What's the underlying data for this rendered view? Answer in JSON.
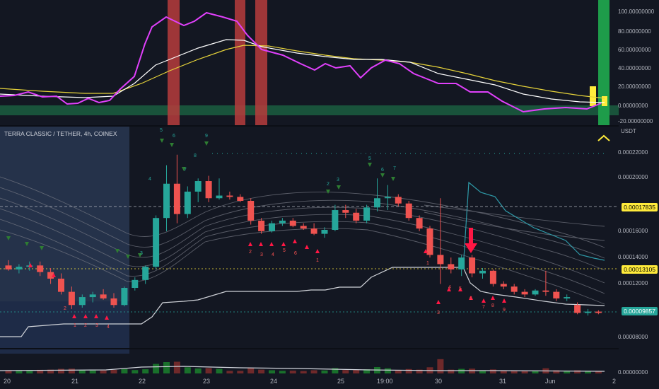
{
  "chart_title": "TERRA CLASSIC / TETHER, 4h, COINEX",
  "unit": "USDT",
  "oscillator_axis": [
    "100.00000000",
    "80.00000000",
    "60.00000000",
    "40.00000000",
    "20.00000000",
    "0.00000000",
    "-20.00000000"
  ],
  "price_axis": [
    "0.00022000",
    "0.00020000",
    "0.00016000",
    "0.00014000",
    "0.00012000",
    "0.00008000"
  ],
  "price_tags": [
    {
      "label": "0.00017835",
      "color": "#ffeb3b",
      "text_color": "#000000"
    },
    {
      "label": "0.00013105",
      "color": "#ffeb3b",
      "text_color": "#000000"
    },
    {
      "label": "0.00009857",
      "color": "#26a69a",
      "text_color": "#ffffff"
    }
  ],
  "volume_axis": "0.00000000",
  "time_axis": [
    "20",
    "21",
    "22",
    "23",
    "24",
    "25",
    "19:00",
    "30",
    "31",
    "Jun",
    "2"
  ],
  "colors": {
    "bull": "#26a69a",
    "bear": "#ef5350",
    "background": "#131722",
    "magenta": "#e040fb",
    "yellow_line": "#e6d33a"
  },
  "chart_data": {
    "type": "candlestick",
    "symbol": "TERRA CLASSIC / TETHER",
    "timeframe": "4h",
    "exchange": "COINEX",
    "candles": [
      {
        "o": 0.000134,
        "h": 0.000138,
        "l": 0.00013,
        "c": 0.000131
      },
      {
        "o": 0.000131,
        "h": 0.000135,
        "l": 0.000128,
        "c": 0.000133
      },
      {
        "o": 0.000133,
        "h": 0.000137,
        "l": 0.00013,
        "c": 0.000134
      },
      {
        "o": 0.000134,
        "h": 0.000137,
        "l": 0.000126,
        "c": 0.000129
      },
      {
        "o": 0.000129,
        "h": 0.000132,
        "l": 0.00012,
        "c": 0.000124
      },
      {
        "o": 0.000124,
        "h": 0.000128,
        "l": 0.000112,
        "c": 0.000114
      },
      {
        "o": 0.000114,
        "h": 0.000118,
        "l": 0.000101,
        "c": 0.000104
      },
      {
        "o": 0.000104,
        "h": 0.000112,
        "l": 0.000102,
        "c": 0.00011
      },
      {
        "o": 0.00011,
        "h": 0.000114,
        "l": 0.000106,
        "c": 0.000112
      },
      {
        "o": 0.000112,
        "h": 0.000116,
        "l": 0.000108,
        "c": 0.000109
      },
      {
        "o": 0.000109,
        "h": 0.000113,
        "l": 0.000102,
        "c": 0.000104
      },
      {
        "o": 0.000104,
        "h": 0.000118,
        "l": 0.000103,
        "c": 0.000117
      },
      {
        "o": 0.000117,
        "h": 0.000125,
        "l": 0.000115,
        "c": 0.000123
      },
      {
        "o": 0.000123,
        "h": 0.000134,
        "l": 0.00012,
        "c": 0.000133
      },
      {
        "o": 0.000133,
        "h": 0.000172,
        "l": 0.000131,
        "c": 0.00017
      },
      {
        "o": 0.00017,
        "h": 0.00021,
        "l": 0.00016,
        "c": 0.000196
      },
      {
        "o": 0.000196,
        "h": 0.000218,
        "l": 0.000166,
        "c": 0.000173
      },
      {
        "o": 0.000173,
        "h": 0.000194,
        "l": 0.00017,
        "c": 0.00019
      },
      {
        "o": 0.00019,
        "h": 0.0002,
        "l": 0.000182,
        "c": 0.000198
      },
      {
        "o": 0.000198,
        "h": 0.000202,
        "l": 0.000182,
        "c": 0.000185
      },
      {
        "o": 0.000185,
        "h": 0.0002,
        "l": 0.000184,
        "c": 0.000187
      },
      {
        "o": 0.000187,
        "h": 0.00019,
        "l": 0.000184,
        "c": 0.000186
      },
      {
        "o": 0.000186,
        "h": 0.000188,
        "l": 0.000182,
        "c": 0.000183
      },
      {
        "o": 0.000183,
        "h": 0.000185,
        "l": 0.000165,
        "c": 0.000168
      },
      {
        "o": 0.000168,
        "h": 0.00017,
        "l": 0.000158,
        "c": 0.00016
      },
      {
        "o": 0.00016,
        "h": 0.000168,
        "l": 0.000159,
        "c": 0.000166
      },
      {
        "o": 0.000166,
        "h": 0.00017,
        "l": 0.000164,
        "c": 0.000168
      },
      {
        "o": 0.000168,
        "h": 0.00017,
        "l": 0.000163,
        "c": 0.000164
      },
      {
        "o": 0.000164,
        "h": 0.000166,
        "l": 0.000161,
        "c": 0.000162
      },
      {
        "o": 0.000162,
        "h": 0.000166,
        "l": 0.000157,
        "c": 0.000158
      },
      {
        "o": 0.000158,
        "h": 0.000163,
        "l": 0.000155,
        "c": 0.000161
      },
      {
        "o": 0.000161,
        "h": 0.00018,
        "l": 0.00016,
        "c": 0.000176
      },
      {
        "o": 0.000176,
        "h": 0.00018,
        "l": 0.00017,
        "c": 0.000174
      },
      {
        "o": 0.000174,
        "h": 0.000177,
        "l": 0.000166,
        "c": 0.000168
      },
      {
        "o": 0.000168,
        "h": 0.00018,
        "l": 0.000166,
        "c": 0.000178
      },
      {
        "o": 0.000178,
        "h": 0.0002,
        "l": 0.000175,
        "c": 0.000185
      },
      {
        "o": 0.000185,
        "h": 0.000195,
        "l": 0.000176,
        "c": 0.000186
      },
      {
        "o": 0.000186,
        "h": 0.000188,
        "l": 0.000179,
        "c": 0.000181
      },
      {
        "o": 0.000181,
        "h": 0.000183,
        "l": 0.000168,
        "c": 0.00017
      },
      {
        "o": 0.00017,
        "h": 0.000172,
        "l": 0.00016,
        "c": 0.000162
      },
      {
        "o": 0.000162,
        "h": 0.000164,
        "l": 0.00014,
        "c": 0.000142
      },
      {
        "o": 0.000142,
        "h": 0.000185,
        "l": 0.00012,
        "c": 0.000135
      },
      {
        "o": 0.000135,
        "h": 0.00014,
        "l": 0.000128,
        "c": 0.000131
      },
      {
        "o": 0.000131,
        "h": 0.000142,
        "l": 0.000126,
        "c": 0.00014
      },
      {
        "o": 0.00014,
        "h": 0.000142,
        "l": 0.000125,
        "c": 0.000128
      },
      {
        "o": 0.000128,
        "h": 0.000132,
        "l": 0.000124,
        "c": 0.00013
      },
      {
        "o": 0.00013,
        "h": 0.000131,
        "l": 0.000118,
        "c": 0.00012
      },
      {
        "o": 0.00012,
        "h": 0.000122,
        "l": 0.000116,
        "c": 0.000118
      },
      {
        "o": 0.000118,
        "h": 0.00012,
        "l": 0.000112,
        "c": 0.000114
      },
      {
        "o": 0.000114,
        "h": 0.000116,
        "l": 0.00011,
        "c": 0.000112
      },
      {
        "o": 0.000112,
        "h": 0.000116,
        "l": 0.000111,
        "c": 0.000115
      },
      {
        "o": 0.000115,
        "h": 0.00013,
        "l": 0.000111,
        "c": 0.000114
      },
      {
        "o": 0.000114,
        "h": 0.000116,
        "l": 0.000107,
        "c": 0.000109
      },
      {
        "o": 0.000109,
        "h": 0.000112,
        "l": 0.000107,
        "c": 0.00011
      },
      {
        "o": 0.000104,
        "h": 0.000106,
        "l": 9.7e-05,
        "c": 9.8e-05
      },
      {
        "o": 9.8e-05,
        "h": 0.000101,
        "l": 9.6e-05,
        "c": 9.9e-05
      },
      {
        "o": 9.9e-05,
        "h": 0.0001,
        "l": 9.7e-05,
        "c": 9.8e-05
      }
    ],
    "count_labels": [
      "1",
      "2",
      "3",
      "4",
      "5",
      "6",
      "7",
      "8",
      "9"
    ],
    "ylim": [
      7e-05,
      0.00024
    ]
  }
}
